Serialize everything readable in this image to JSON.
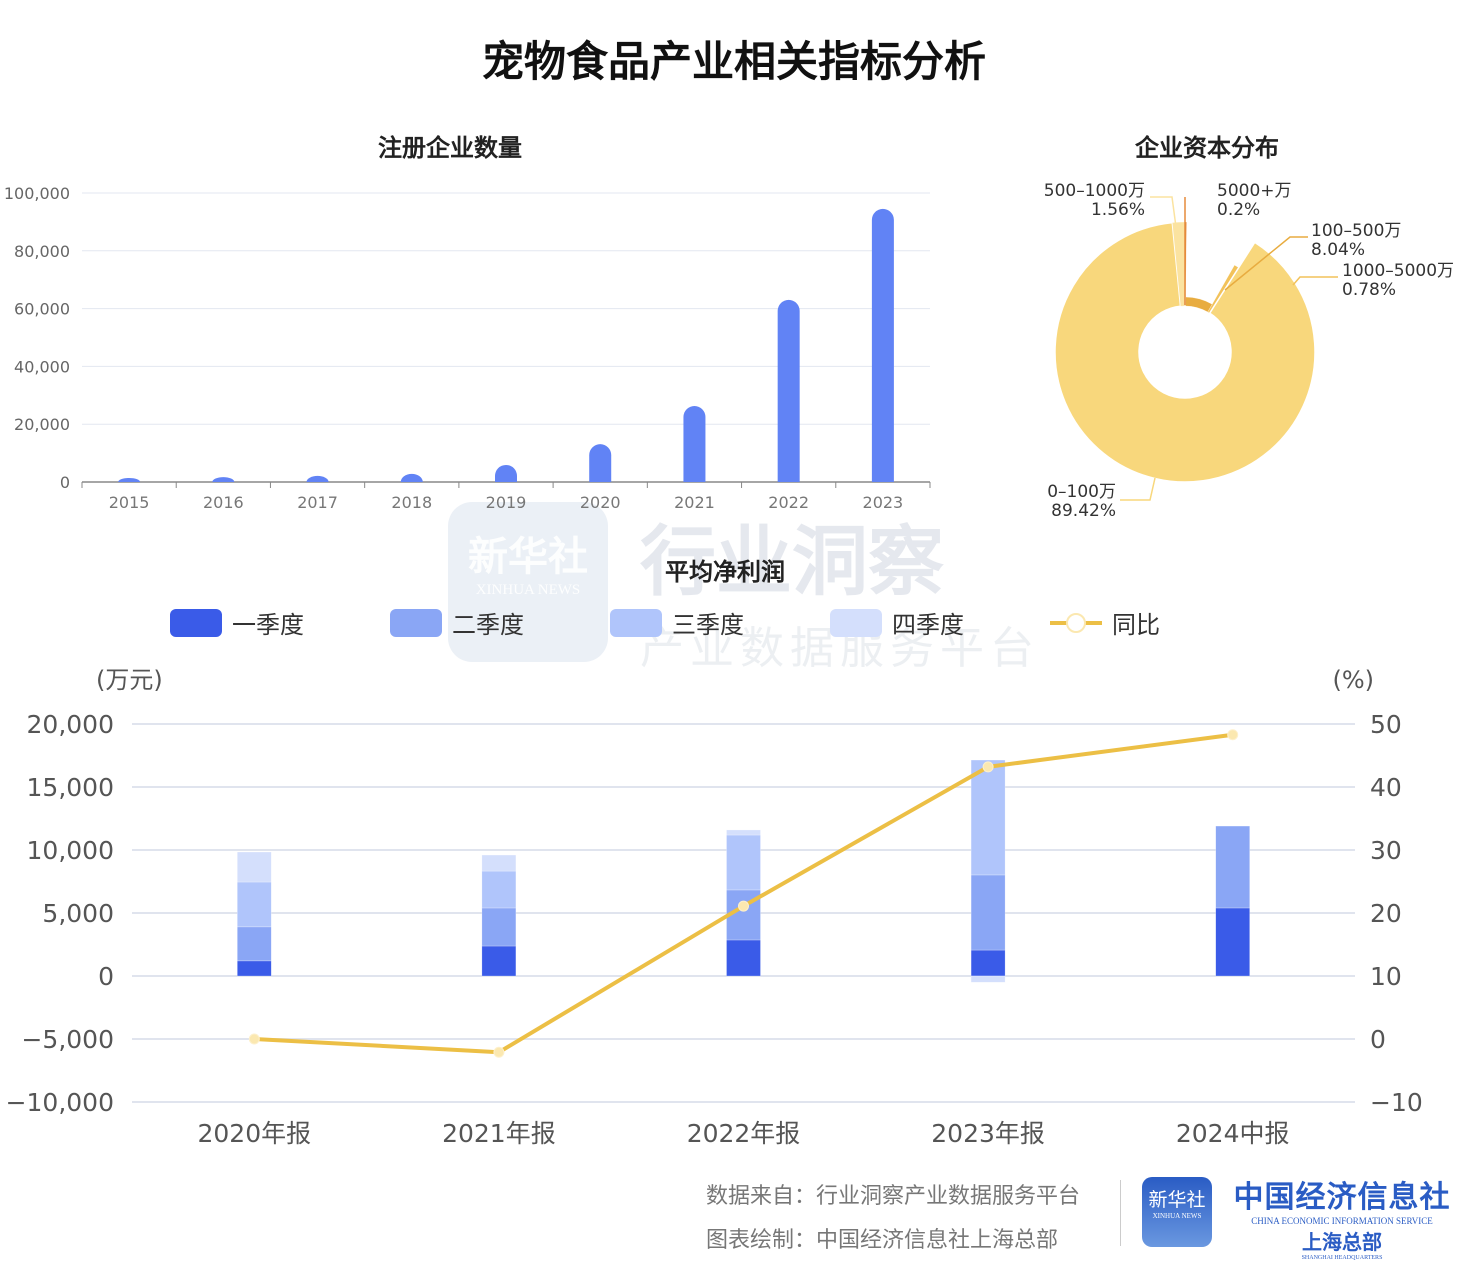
{
  "title": "宠物食品产业相关指标分析",
  "watermark": {
    "logo": "新华社",
    "logo_sub": "XINHUA NEWS",
    "main": "行业洞察",
    "sub": "产业数据服务平台"
  },
  "footer": {
    "source": "数据来自：行业洞察产业数据服务平台",
    "credit": "图表绘制：中国经济信息社上海总部",
    "logo1": "新华社",
    "logo1_sub": "XINHUA NEWS",
    "logo2": "中国经济信息社",
    "logo2_en": "CHINA ECONOMIC INFORMATION SERVICE",
    "logo2_sub": "上海总部",
    "logo2_sub_en": "SHANGHAI HEADQUARTERS"
  },
  "chart_data": [
    {
      "type": "bar",
      "title": "注册企业数量",
      "categories": [
        "2015",
        "2016",
        "2017",
        "2018",
        "2019",
        "2020",
        "2021",
        "2022",
        "2023"
      ],
      "values": [
        1400,
        1700,
        2100,
        2800,
        5900,
        13100,
        26300,
        63000,
        94500
      ],
      "yticks": [
        "0",
        "20,000",
        "40,000",
        "60,000",
        "80,000",
        "100,000"
      ],
      "ylim": [
        0,
        100000
      ],
      "grid": true,
      "color": "#6183f5"
    },
    {
      "type": "pie",
      "title": "企业资本分布",
      "donut": true,
      "slices": [
        {
          "label": "5000+万",
          "value": 0.2,
          "text": "0.2%",
          "color": "#e58a3a"
        },
        {
          "label": "100–500万",
          "value": 8.04,
          "text": "8.04%",
          "color": "#e8ac40"
        },
        {
          "label": "1000–5000万",
          "value": 0.78,
          "text": "0.78%",
          "color": "#f2c25a"
        },
        {
          "label": "0–100万",
          "value": 89.42,
          "text": "89.42%",
          "color": "#f8d77c"
        },
        {
          "label": "500–1000万",
          "value": 1.56,
          "text": "1.56%",
          "color": "#fbe3a0"
        }
      ]
    },
    {
      "type": "bar",
      "stacked": true,
      "title": "平均净利润",
      "categories": [
        "2020年报",
        "2021年报",
        "2022年报",
        "2023年报",
        "2024中报"
      ],
      "ylabel": "(万元)",
      "y2label": "(%)",
      "ylim": [
        -10000,
        20000
      ],
      "y2lim": [
        -10,
        50
      ],
      "yticks": [
        "20,000",
        "15,000",
        "10,000",
        "5,000",
        "0",
        "−5,000",
        "−10,000"
      ],
      "y2ticks": [
        "50",
        "40",
        "30",
        "20",
        "10",
        "0",
        "−10"
      ],
      "grid": true,
      "legend": "top",
      "series": [
        {
          "name": "一季度",
          "color": "#3a5be8",
          "values": [
            1200,
            2380,
            2860,
            2060,
            5400
          ]
        },
        {
          "name": "二季度",
          "color": "#8aa6f5",
          "values": [
            2700,
            3020,
            3970,
            5960,
            6500
          ]
        },
        {
          "name": "三季度",
          "color": "#b0c5fb",
          "values": [
            3560,
            2930,
            4360,
            9120,
            null
          ]
        },
        {
          "name": "四季度",
          "color": "#d4dffc",
          "values": [
            2380,
            1270,
            400,
            -500,
            null
          ]
        },
        {
          "name": "同比",
          "type": "line",
          "axis": "right",
          "color": "#ecbf45",
          "values": [
            0.0,
            -2.1,
            21.1,
            43.2,
            48.3
          ]
        }
      ]
    }
  ]
}
